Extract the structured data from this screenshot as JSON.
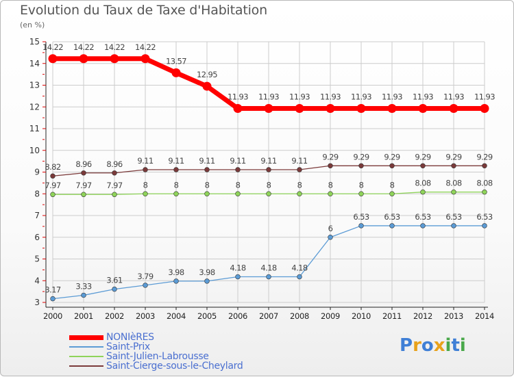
{
  "header": {
    "title": "Evolution du Taux de Taxe d'Habitation",
    "unit": "(en %)"
  },
  "logo": {
    "text": "Proxiti"
  },
  "colors": {
    "NONIèRES": "#ff0000",
    "Saint-Prix": "#5b9bd5",
    "Saint-Julien-Labrousse": "#8fd45a",
    "Saint-Cierge-sous-le-Cheylard": "#7b3a3a",
    "legend_text": "#4a6fd0",
    "grid": "#cccccc"
  },
  "chart_data": {
    "type": "line",
    "title": "Evolution du Taux de Taxe d'Habitation",
    "ylabel": "(en %)",
    "xlabel": "",
    "ylim": [
      3,
      15
    ],
    "yticks": [
      3,
      4,
      5,
      6,
      7,
      8,
      9,
      10,
      11,
      12,
      13,
      14,
      15
    ],
    "grid": true,
    "legend_position": "bottom-left",
    "categories": [
      "2000",
      "2001",
      "2002",
      "2003",
      "2004",
      "2005",
      "2006",
      "2007",
      "2008",
      "2009",
      "2010",
      "2011",
      "2012",
      "2013",
      "2014"
    ],
    "series": [
      {
        "name": "NONIèRES",
        "values": [
          14.22,
          14.22,
          14.22,
          14.22,
          13.57,
          12.95,
          11.93,
          11.93,
          11.93,
          11.93,
          11.93,
          11.93,
          11.93,
          11.93,
          11.93
        ]
      },
      {
        "name": "Saint-Prix",
        "values": [
          3.17,
          3.33,
          3.61,
          3.79,
          3.98,
          3.98,
          4.18,
          4.18,
          4.18,
          6,
          6.53,
          6.53,
          6.53,
          6.53,
          6.53
        ]
      },
      {
        "name": "Saint-Julien-Labrousse",
        "values": [
          7.97,
          7.97,
          7.97,
          8,
          8,
          8,
          8,
          8,
          8,
          8,
          8,
          8,
          8.08,
          8.08,
          8.08
        ]
      },
      {
        "name": "Saint-Cierge-sous-le-Cheylard",
        "values": [
          8.82,
          8.96,
          8.96,
          9.11,
          9.11,
          9.11,
          9.11,
          9.11,
          9.11,
          9.29,
          9.29,
          9.29,
          9.29,
          9.29,
          9.29
        ]
      }
    ]
  }
}
